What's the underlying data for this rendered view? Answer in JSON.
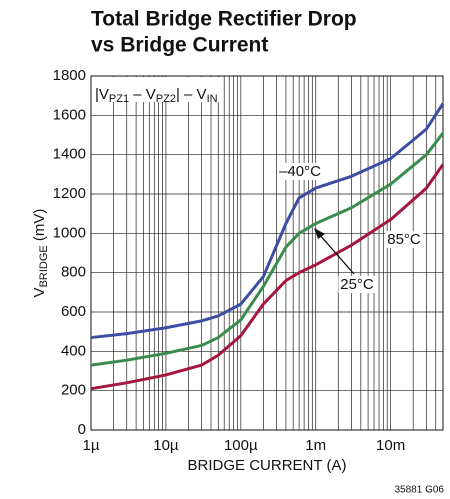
{
  "chart_data": {
    "type": "line",
    "title": [
      "Total Bridge Rectifier Drop",
      "vs Bridge Current"
    ],
    "xlabel": "BRIDGE CURRENT (A)",
    "ylabel": [
      "V",
      "BRIDGE",
      " (mV)"
    ],
    "box_label": [
      "|V",
      "PZ1",
      " – V",
      "PZ2",
      "| – V",
      "IN"
    ],
    "footer": "35881 G06",
    "x_scale": "log",
    "xlim": [
      1e-06,
      0.05
    ],
    "xticks": [
      {
        "value": 1e-06,
        "label": "1µ"
      },
      {
        "value": 1e-05,
        "label": "10µ"
      },
      {
        "value": 0.0001,
        "label": "100µ"
      },
      {
        "value": 0.001,
        "label": "1m"
      },
      {
        "value": 0.01,
        "label": "10m"
      }
    ],
    "xminor": [
      2e-06,
      3e-06,
      4e-06,
      5e-06,
      6e-06,
      7e-06,
      8e-06,
      9e-06,
      2e-05,
      3e-05,
      4e-05,
      5e-05,
      6e-05,
      7e-05,
      8e-05,
      9e-05,
      0.0002,
      0.0003,
      0.0004,
      0.0005,
      0.0006,
      0.0007,
      0.0008,
      0.0009,
      0.002,
      0.003,
      0.004,
      0.005,
      0.006,
      0.007,
      0.008,
      0.009,
      0.02,
      0.03,
      0.04
    ],
    "ylim": [
      0,
      1800
    ],
    "yticks": [
      0,
      200,
      400,
      600,
      800,
      1000,
      1200,
      1400,
      1600,
      1800
    ],
    "grid": true,
    "x": [
      1e-06,
      3e-06,
      1e-05,
      3e-05,
      5e-05,
      0.0001,
      0.0002,
      0.0004,
      0.0006,
      0.001,
      0.003,
      0.01,
      0.03,
      0.05
    ],
    "series": [
      {
        "name": "–40°C",
        "color": "#3b4ea3",
        "values": [
          470,
          490,
          520,
          555,
          580,
          640,
          780,
          1050,
          1180,
          1230,
          1290,
          1380,
          1530,
          1660
        ]
      },
      {
        "name": "25°C",
        "color": "#3a8c4c",
        "values": [
          330,
          355,
          390,
          430,
          470,
          560,
          730,
          930,
          1000,
          1050,
          1130,
          1250,
          1400,
          1510
        ]
      },
      {
        "name": "85°C",
        "color": "#a3173f",
        "values": [
          210,
          240,
          280,
          330,
          380,
          480,
          640,
          760,
          800,
          840,
          940,
          1070,
          1230,
          1350
        ]
      }
    ]
  }
}
